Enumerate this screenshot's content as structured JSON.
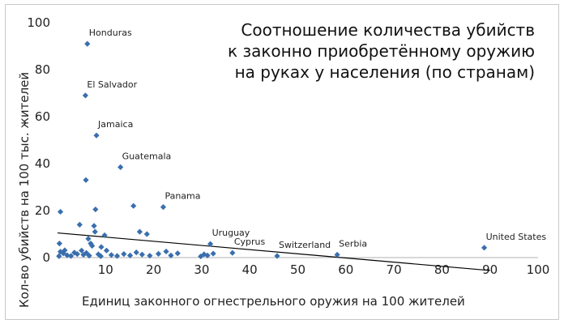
{
  "chart_data": {
    "type": "scatter",
    "title_lines": [
      "Соотношение количества убийств",
      "к законно приобретённому оружию",
      "на руках у населения (по странам)"
    ],
    "xlabel": "Единиц законного огнестрельного оружия на 100 жителей",
    "ylabel": "Кол-во убийств на 100 тыс. жителей",
    "xlim": [
      0,
      100
    ],
    "ylim": [
      0,
      100
    ],
    "xticks": [
      "10",
      "20",
      "30",
      "40",
      "50",
      "60",
      "70",
      "80",
      "90",
      "100"
    ],
    "yticks": [
      "0",
      "20",
      "40",
      "60",
      "80",
      "100"
    ],
    "grid": false,
    "marker_color": "#3a6fae",
    "trendline": {
      "x": [
        0,
        90
      ],
      "y": [
        10.5,
        -5.5
      ],
      "color": "#000000"
    },
    "annotations": [
      {
        "label": "Honduras",
        "x": 6.2,
        "y": 91
      },
      {
        "label": "El Salvador",
        "x": 5.8,
        "y": 69
      },
      {
        "label": "Jamaica",
        "x": 8.1,
        "y": 52
      },
      {
        "label": "Guatemala",
        "x": 13.1,
        "y": 38.5
      },
      {
        "label": "Panama",
        "x": 22.0,
        "y": 21.5
      },
      {
        "label": "Uruguay",
        "x": 31.8,
        "y": 5.8
      },
      {
        "label": "Cyprus",
        "x": 36.4,
        "y": 2
      },
      {
        "label": "Switzerland",
        "x": 45.7,
        "y": 0.7
      },
      {
        "label": "Serbia",
        "x": 58.2,
        "y": 1.2
      },
      {
        "label": "United States",
        "x": 88.8,
        "y": 4.2
      }
    ],
    "points": [
      [
        6.2,
        91
      ],
      [
        5.8,
        69
      ],
      [
        8.1,
        52
      ],
      [
        13.1,
        38.5
      ],
      [
        22.0,
        21.5
      ],
      [
        31.8,
        5.8
      ],
      [
        36.4,
        2
      ],
      [
        45.7,
        0.7
      ],
      [
        58.2,
        1.2
      ],
      [
        88.8,
        4.2
      ],
      [
        5.9,
        33
      ],
      [
        0.6,
        19.5
      ],
      [
        15.8,
        22
      ],
      [
        7.9,
        20.5
      ],
      [
        4.6,
        14
      ],
      [
        7.6,
        13.5
      ],
      [
        17.1,
        11
      ],
      [
        7.8,
        11
      ],
      [
        18.6,
        10
      ],
      [
        9.8,
        9.5
      ],
      [
        6.4,
        8
      ],
      [
        6.9,
        6
      ],
      [
        7.2,
        5
      ],
      [
        9.1,
        4.5
      ],
      [
        10.2,
        3
      ],
      [
        0.4,
        6
      ],
      [
        0.6,
        2.5
      ],
      [
        1.2,
        1.8
      ],
      [
        2.0,
        1
      ],
      [
        2.8,
        0.7
      ],
      [
        3.5,
        2.1
      ],
      [
        4.1,
        1.5
      ],
      [
        5.0,
        3
      ],
      [
        5.4,
        1.2
      ],
      [
        6.0,
        2
      ],
      [
        6.6,
        0.8
      ],
      [
        8.5,
        1.4
      ],
      [
        9.0,
        0.6
      ],
      [
        11.2,
        1.1
      ],
      [
        12.4,
        0.7
      ],
      [
        13.8,
        1.5
      ],
      [
        15.1,
        0.9
      ],
      [
        16.4,
        2.2
      ],
      [
        17.6,
        1.3
      ],
      [
        19.2,
        0.8
      ],
      [
        21.0,
        1.6
      ],
      [
        22.6,
        2.6
      ],
      [
        23.6,
        0.9
      ],
      [
        25.0,
        1.8
      ],
      [
        29.8,
        0.5
      ],
      [
        30.5,
        1.4
      ],
      [
        31.2,
        0.9
      ],
      [
        32.4,
        1.7
      ],
      [
        0.3,
        0.6
      ],
      [
        1.5,
        3.1
      ]
    ]
  }
}
